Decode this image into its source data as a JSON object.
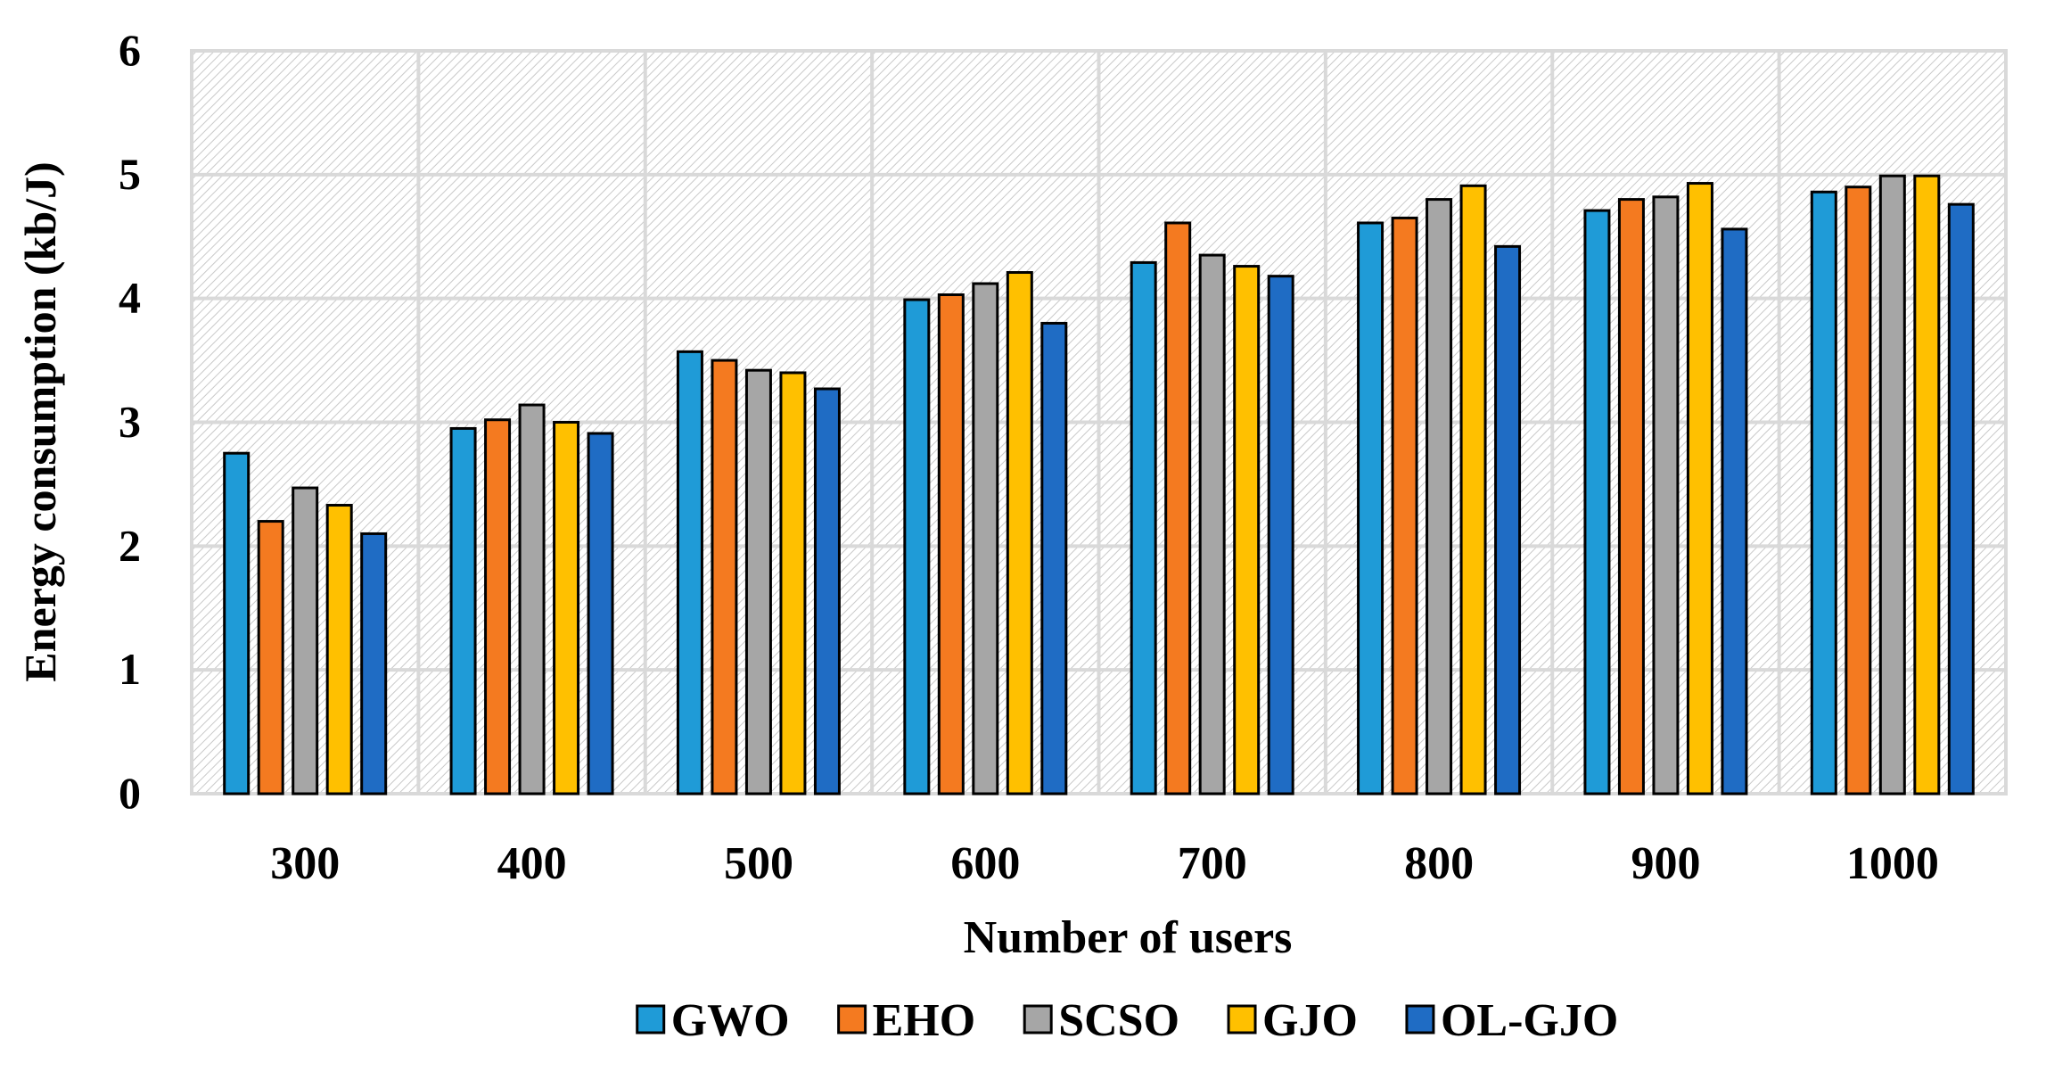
{
  "chart_data": {
    "type": "bar",
    "title": "",
    "xlabel": "Number of users",
    "ylabel": "Energy consumption (kb/J)",
    "ylim": [
      0,
      6
    ],
    "yticks": [
      "0",
      "1",
      "2",
      "3",
      "4",
      "5",
      "6"
    ],
    "grid": true,
    "legend_position": "bottom",
    "categories": [
      "300",
      "400",
      "500",
      "600",
      "700",
      "800",
      "900",
      "1000"
    ],
    "series": [
      {
        "name": "GWO",
        "color": "#1F9BD7",
        "values": [
          2.75,
          2.95,
          3.57,
          3.99,
          4.29,
          4.61,
          4.71,
          4.86
        ]
      },
      {
        "name": "EHO",
        "color": "#F47A20",
        "values": [
          2.2,
          3.02,
          3.5,
          4.03,
          4.61,
          4.65,
          4.8,
          4.9
        ]
      },
      {
        "name": "SCSO",
        "color": "#A6A6A6",
        "values": [
          2.47,
          3.14,
          3.42,
          4.12,
          4.35,
          4.8,
          4.82,
          4.99
        ]
      },
      {
        "name": "GJO",
        "color": "#FFC000",
        "values": [
          2.33,
          3.0,
          3.4,
          4.21,
          4.26,
          4.91,
          4.93,
          4.99
        ]
      },
      {
        "name": "OL-GJO",
        "color": "#1F6CC4",
        "values": [
          2.1,
          2.91,
          3.27,
          3.8,
          4.18,
          4.42,
          4.56,
          4.76
        ]
      }
    ]
  }
}
